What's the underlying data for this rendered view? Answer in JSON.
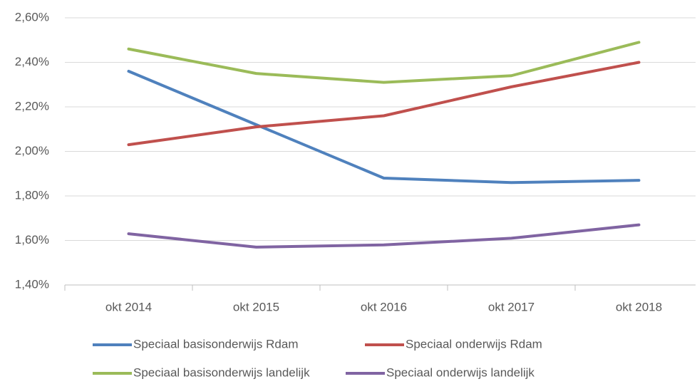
{
  "chart_data": {
    "type": "line",
    "categories": [
      "okt 2014",
      "okt 2015",
      "okt 2016",
      "okt 2017",
      "okt 2018"
    ],
    "series": [
      {
        "name": "Speciaal basisonderwijs Rdam",
        "color": "#4f81bd",
        "values": [
          2.36,
          2.12,
          1.88,
          1.86,
          1.87
        ]
      },
      {
        "name": "Speciaal onderwijs Rdam",
        "color": "#c0504d",
        "values": [
          2.03,
          2.11,
          2.16,
          2.29,
          2.4
        ]
      },
      {
        "name": "Speciaal basisonderwijs landelijk",
        "color": "#9bbb59",
        "values": [
          2.46,
          2.35,
          2.31,
          2.34,
          2.49
        ]
      },
      {
        "name": "Speciaal onderwijs landelijk",
        "color": "#8064a2",
        "values": [
          1.63,
          1.57,
          1.58,
          1.61,
          1.67
        ]
      }
    ],
    "ylim": [
      1.4,
      2.6
    ],
    "yticks": [
      {
        "value": 1.4,
        "label": "1,40%"
      },
      {
        "value": 1.6,
        "label": "1,60%"
      },
      {
        "value": 1.8,
        "label": "1,80%"
      },
      {
        "value": 2.0,
        "label": "2,00%"
      },
      {
        "value": 2.2,
        "label": "2,20%"
      },
      {
        "value": 2.4,
        "label": "2,40%"
      },
      {
        "value": 2.6,
        "label": "2,60%"
      }
    ],
    "grid": true,
    "legend": "bottom"
  }
}
